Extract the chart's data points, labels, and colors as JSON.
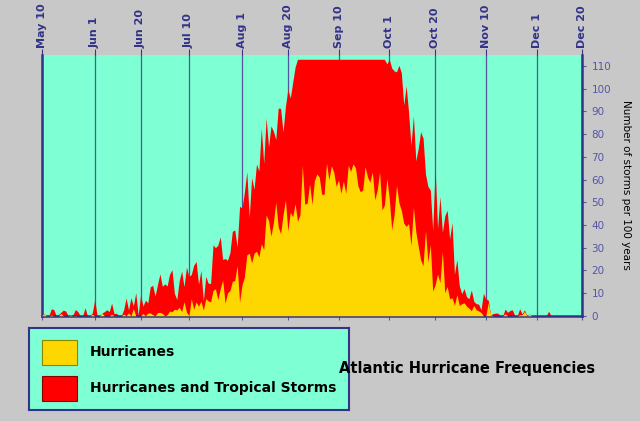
{
  "background_color": "#c8c8c8",
  "plot_bg_color": "#7fffd4",
  "hurricane_color": "#FFD700",
  "tropical_storm_color": "#FF0000",
  "ylabel": "Number of storms per 100 years",
  "ylim": [
    0,
    115
  ],
  "yticks": [
    0,
    10,
    20,
    30,
    40,
    50,
    60,
    70,
    80,
    90,
    100,
    110
  ],
  "title": "Atlantic Hurricane Frequencies",
  "legend_label1": "Hurricanes",
  "legend_label2": "Hurricanes and Tropical Storms",
  "xtick_labels": [
    "May 10",
    "Jun 1",
    "Jun 20",
    "Jul 10",
    "Aug 1",
    "Aug 20",
    "Sep 10",
    "Oct 1",
    "Oct 20",
    "Nov 10",
    "Dec 1",
    "Dec 20"
  ],
  "border_color": "#333388",
  "tick_color": "#5555aa",
  "vline_color": "#555599"
}
